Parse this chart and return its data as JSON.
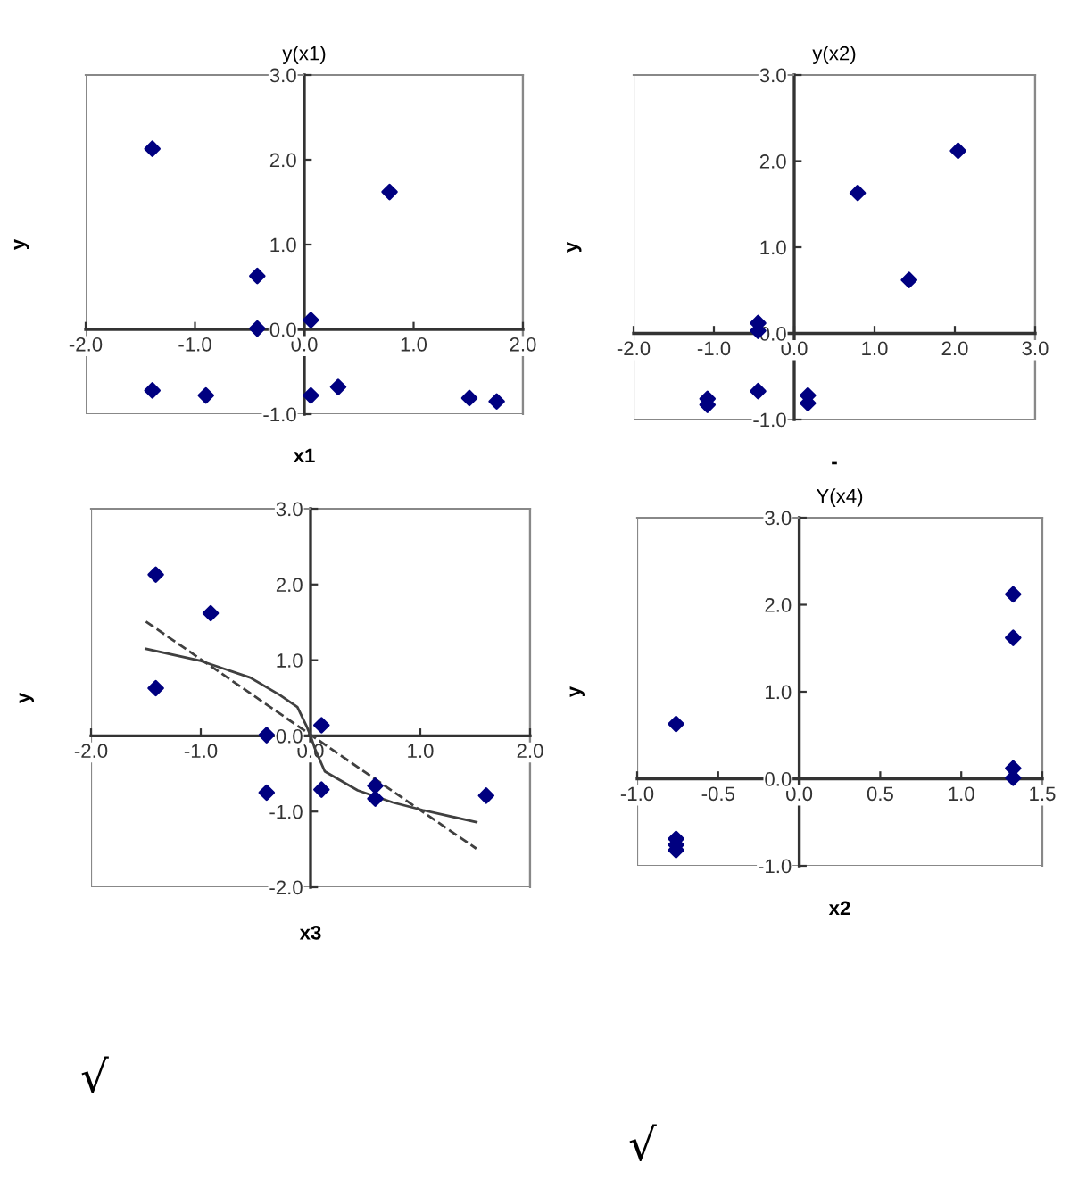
{
  "chart_data": [
    {
      "type": "scatter",
      "title": "y(x1)",
      "xlabel": "x1",
      "ylabel": "y",
      "xlim": [
        -2.0,
        2.0
      ],
      "xticks": [
        {
          "value": -2,
          "label": "-2.0"
        },
        {
          "value": -1,
          "label": "-1.0"
        },
        {
          "value": 0,
          "label": "0.0"
        },
        {
          "value": 1,
          "label": "1.0"
        },
        {
          "value": 2,
          "label": "2.0"
        }
      ],
      "ylim": [
        -1.0,
        3.0
      ],
      "yticks": [
        {
          "value": -1,
          "label": "-1.0"
        },
        {
          "value": 0,
          "label": "0.0"
        },
        {
          "value": 1,
          "label": "1.0"
        },
        {
          "value": 2,
          "label": "2.0"
        },
        {
          "value": 3,
          "label": "3.0"
        }
      ],
      "marker": "diamond",
      "grid": false,
      "legend": false,
      "series": [
        {
          "color": "#000080",
          "x": [
            -1.39,
            0.78,
            -0.43,
            -0.43,
            0.06,
            -1.39,
            -0.9,
            0.06,
            0.31,
            1.51,
            1.76
          ],
          "values": [
            2.13,
            1.62,
            0.63,
            0.01,
            0.11,
            -0.72,
            -0.78,
            -0.78,
            -0.68,
            -0.81,
            -0.85
          ]
        }
      ]
    },
    {
      "type": "scatter",
      "title": "y(x2)",
      "xlabel": "-",
      "ylabel": "y",
      "xlim": [
        -2.0,
        3.0
      ],
      "xticks": [
        {
          "value": -2,
          "label": "-2.0"
        },
        {
          "value": -1,
          "label": "-1.0"
        },
        {
          "value": 0,
          "label": "0.0"
        },
        {
          "value": 1,
          "label": "1.0"
        },
        {
          "value": 2,
          "label": "2.0"
        },
        {
          "value": 3,
          "label": "3.0"
        }
      ],
      "ylim": [
        -1.0,
        3.0
      ],
      "yticks": [
        {
          "value": -1,
          "label": "-1.0"
        },
        {
          "value": 0,
          "label": "0.0"
        },
        {
          "value": 1,
          "label": "1.0"
        },
        {
          "value": 2,
          "label": "2.0"
        },
        {
          "value": 3,
          "label": "3.0"
        }
      ],
      "marker": "diamond",
      "grid": false,
      "legend": false,
      "series": [
        {
          "color": "#000080",
          "x": [
            2.04,
            0.79,
            1.43,
            -0.45,
            -0.45,
            -0.45,
            -1.08,
            -1.08,
            0.17,
            0.17
          ],
          "values": [
            2.12,
            1.63,
            0.62,
            0.12,
            0.03,
            -0.67,
            -0.76,
            -0.83,
            -0.72,
            -0.81
          ]
        }
      ]
    },
    {
      "type": "scatter",
      "xlabel": "x3",
      "ylabel": "y",
      "xlim": [
        -2.0,
        2.0
      ],
      "xticks": [
        {
          "value": -2,
          "label": "-2.0"
        },
        {
          "value": -1,
          "label": "-1.0"
        },
        {
          "value": 0,
          "label": "0.0"
        },
        {
          "value": 1,
          "label": "1.0"
        },
        {
          "value": 2,
          "label": "2.0"
        }
      ],
      "ylim": [
        -2.0,
        3.0
      ],
      "yticks": [
        {
          "value": -2,
          "label": "-2.0"
        },
        {
          "value": -1,
          "label": "-1.0"
        },
        {
          "value": 0,
          "label": "0.0"
        },
        {
          "value": 1,
          "label": "1.0"
        },
        {
          "value": 2,
          "label": "2.0"
        },
        {
          "value": 3,
          "label": "3.0"
        }
      ],
      "marker": "diamond",
      "grid": false,
      "legend": false,
      "annotations": [
        "√"
      ],
      "series": [
        {
          "color": "#000080",
          "x": [
            -1.41,
            -0.91,
            -1.41,
            -0.4,
            -0.4,
            0.1,
            0.1,
            0.59,
            0.59,
            1.6
          ],
          "values": [
            2.13,
            1.62,
            0.63,
            0.01,
            -0.75,
            0.14,
            -0.71,
            -0.66,
            -0.83,
            -0.79
          ]
        },
        {
          "type": "line",
          "color": "#404040",
          "line_style": "solid",
          "marker": "none",
          "x": [
            -1.5,
            -1.0,
            -0.55,
            -0.28,
            -0.12,
            -0.04,
            0.0,
            0.04,
            0.13,
            0.43,
            0.75,
            1.02,
            1.51
          ],
          "values": [
            1.15,
            0.99,
            0.77,
            0.54,
            0.38,
            0.14,
            0.0,
            -0.17,
            -0.47,
            -0.72,
            -0.88,
            -0.98,
            -1.14
          ]
        },
        {
          "type": "line",
          "color": "#404040",
          "line_style": "dashed",
          "marker": "none",
          "x": [
            -1.5,
            1.51
          ],
          "values": [
            1.51,
            -1.49
          ]
        }
      ]
    },
    {
      "type": "scatter",
      "title": "Y(x4)",
      "xlabel": "x2",
      "ylabel": "y",
      "xlim": [
        -1.0,
        1.5
      ],
      "xticks": [
        {
          "value": -1,
          "label": "-1.0"
        },
        {
          "value": -0.5,
          "label": "-0.5"
        },
        {
          "value": 0,
          "label": "0.0"
        },
        {
          "value": 0.5,
          "label": "0.5"
        },
        {
          "value": 1,
          "label": "1.0"
        },
        {
          "value": 1.5,
          "label": "1.5"
        }
      ],
      "ylim": [
        -1.0,
        3.0
      ],
      "yticks": [
        {
          "value": -1,
          "label": "-1.0"
        },
        {
          "value": 0,
          "label": "0.0"
        },
        {
          "value": 1,
          "label": "1.0"
        },
        {
          "value": 2,
          "label": "2.0"
        },
        {
          "value": 3,
          "label": "3.0"
        }
      ],
      "marker": "diamond",
      "grid": false,
      "legend": false,
      "annotations": [
        "√"
      ],
      "series": [
        {
          "color": "#000080",
          "x": [
            -0.76,
            -0.76,
            -0.76,
            -0.76,
            1.32,
            1.32,
            1.32,
            1.32
          ],
          "values": [
            0.63,
            -0.69,
            -0.76,
            -0.82,
            2.12,
            1.62,
            0.12,
            0.01
          ]
        }
      ]
    }
  ]
}
